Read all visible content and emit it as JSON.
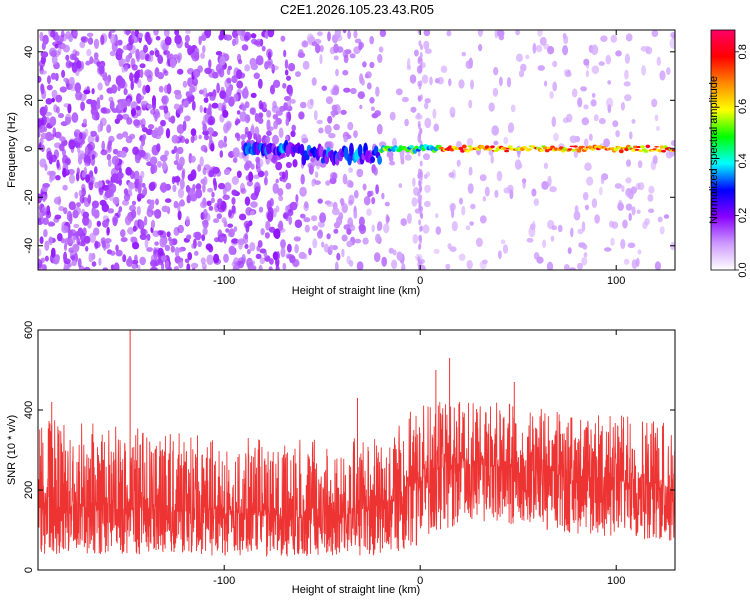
{
  "title": "C2E1.2026.105.23.43.R05",
  "chart_data": [
    {
      "type": "heatmap",
      "title": "C2E1.2026.105.23.43.R05",
      "xlabel": "Height of straight line (km)",
      "ylabel": "Frequency (Hz)",
      "xlim": [
        -195,
        130
      ],
      "ylim": [
        -50,
        49
      ],
      "x_ticks": [
        -100,
        0,
        100
      ],
      "x_tick_labels": [
        "-100",
        "0",
        "100"
      ],
      "y_ticks": [
        -40,
        -20,
        0,
        20,
        40
      ],
      "y_tick_labels": [
        "-40",
        "-20",
        "0",
        "20",
        "40"
      ],
      "colorbar": {
        "label": "Normalized spectral amplitude",
        "range": [
          0,
          0.88
        ],
        "ticks": [
          0.0,
          0.2,
          0.4,
          0.6,
          0.8
        ],
        "tick_labels": [
          "0.0",
          "0.2",
          "0.4",
          "0.6",
          "0.8"
        ],
        "colormap": [
          "#ffffff",
          "#cc99ff",
          "#8800ff",
          "#0000ff",
          "#00ffff",
          "#00ff00",
          "#ffff00",
          "#ff8800",
          "#ff0000",
          "#ff0066"
        ]
      },
      "signal_track": {
        "freq": 0,
        "start_x": -90,
        "end_x": 130,
        "peak_amplitude": 0.85
      },
      "grid": false
    },
    {
      "type": "line",
      "xlabel": "Height of straight line (km)",
      "ylabel": "SNR (10 * v/v)",
      "xlim": [
        -195,
        130
      ],
      "ylim": [
        0,
        600
      ],
      "x_ticks": [
        -100,
        0,
        100
      ],
      "x_tick_labels": [
        "-100",
        "0",
        "100"
      ],
      "y_ticks": [
        0,
        200,
        400,
        600
      ],
      "y_tick_labels": [
        "0",
        "200",
        "400",
        "600"
      ],
      "series_color": "#ee3333",
      "envelope": {
        "x": [
          -195,
          -150,
          -100,
          -50,
          -20,
          0,
          10,
          30,
          50,
          80,
          100,
          130
        ],
        "low": [
          40,
          40,
          35,
          30,
          35,
          60,
          100,
          120,
          110,
          90,
          80,
          70
        ],
        "high": [
          380,
          360,
          330,
          330,
          330,
          420,
          420,
          420,
          420,
          390,
          390,
          380
        ],
        "median": [
          150,
          150,
          140,
          130,
          150,
          220,
          250,
          260,
          250,
          230,
          220,
          200
        ]
      },
      "spikes": [
        {
          "x": -148,
          "y": 600
        },
        {
          "x": 15,
          "y": 530
        },
        {
          "x": 8,
          "y": 500
        },
        {
          "x": -32,
          "y": 430
        },
        {
          "x": -188,
          "y": 420
        },
        {
          "x": 48,
          "y": 470
        }
      ],
      "grid": false
    }
  ]
}
